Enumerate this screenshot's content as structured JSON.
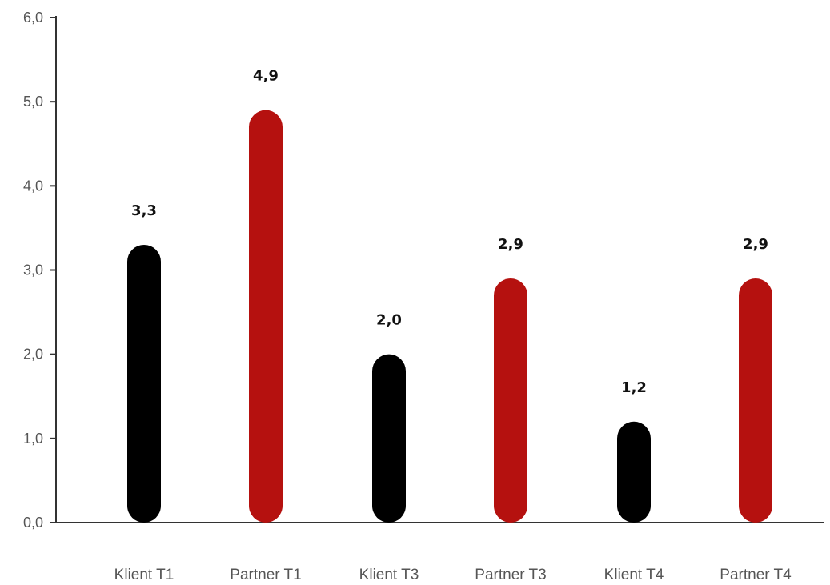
{
  "chart_data": {
    "type": "bar",
    "categories": [
      "Klient T1",
      "Partner T1",
      "Klient T3",
      "Partner T3",
      "Klient T4",
      "Partner T4"
    ],
    "values": [
      3.3,
      4.9,
      2.0,
      2.9,
      1.2,
      2.9
    ],
    "value_labels": [
      "3,3",
      "4,9",
      "2,0",
      "2,9",
      "1,2",
      "2,9"
    ],
    "bar_colors": [
      "#000000",
      "#b5110f",
      "#000000",
      "#b5110f",
      "#000000",
      "#b5110f"
    ],
    "ylim": [
      0,
      6
    ],
    "yticks": [
      0,
      1,
      2,
      3,
      4,
      5,
      6
    ],
    "ytick_labels": [
      "0,0",
      "1,0",
      "2,0",
      "3,0",
      "4,0",
      "5,0",
      "6,0"
    ],
    "grid": false,
    "title": "",
    "xlabel": "",
    "ylabel": ""
  }
}
